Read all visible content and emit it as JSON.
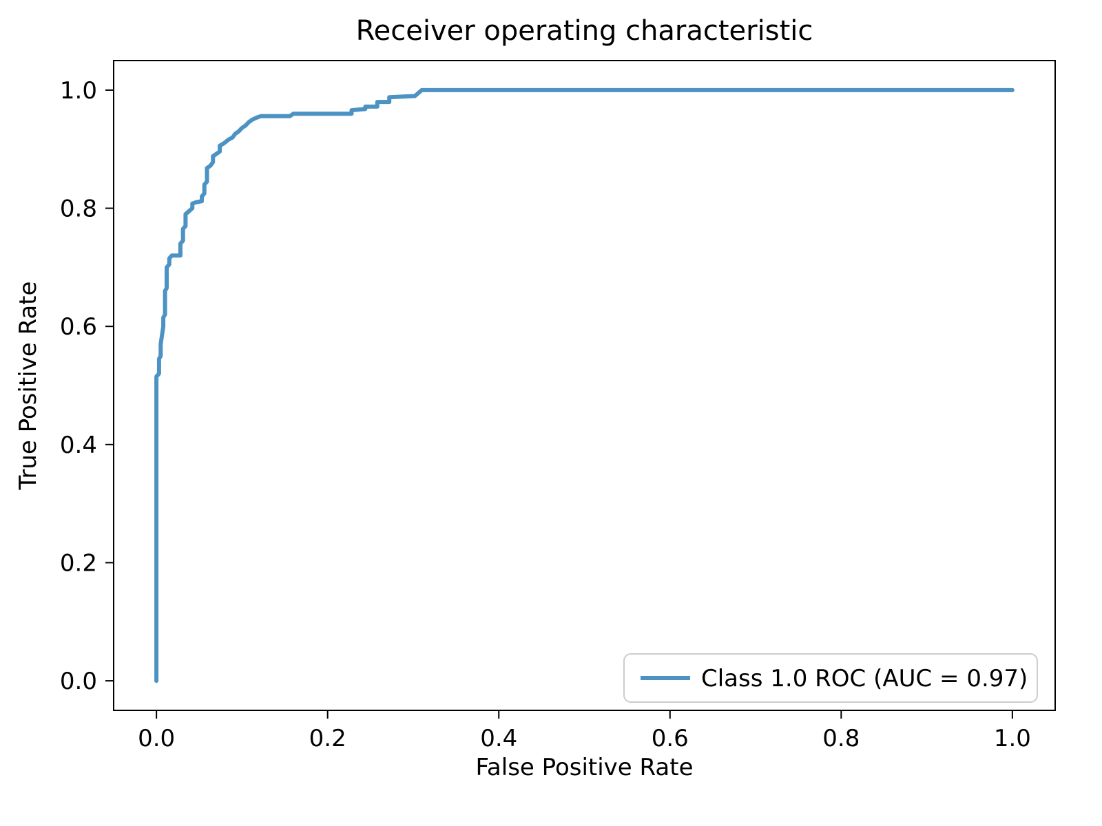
{
  "figure": {
    "background": "#ffffff",
    "text_color": "#000000",
    "spine_color": "#000000"
  },
  "chart_data": {
    "type": "line",
    "title": "Receiver operating characteristic",
    "xlabel": "False Positive Rate",
    "ylabel": "True Positive Rate",
    "xlim": [
      -0.05,
      1.05
    ],
    "ylim": [
      -0.05,
      1.05
    ],
    "xticks": [
      0.0,
      0.2,
      0.4,
      0.6,
      0.8,
      1.0
    ],
    "yticks": [
      0.0,
      0.2,
      0.4,
      0.6,
      0.8,
      1.0
    ],
    "grid": false,
    "legend": {
      "position": "lower right",
      "border_color": "#cccccc",
      "entries": [
        {
          "label": "Class 1.0 ROC (AUC = 0.97)",
          "color": "#4c92c3"
        }
      ]
    },
    "series": [
      {
        "name": "Class 1.0 ROC (AUC = 0.97)",
        "color": "#4c92c3",
        "linewidth": 6,
        "auc": 0.97,
        "points": [
          [
            0.0,
            0.0
          ],
          [
            0.0,
            0.515
          ],
          [
            0.003,
            0.52
          ],
          [
            0.003,
            0.545
          ],
          [
            0.005,
            0.55
          ],
          [
            0.005,
            0.57
          ],
          [
            0.008,
            0.6
          ],
          [
            0.008,
            0.615
          ],
          [
            0.01,
            0.62
          ],
          [
            0.01,
            0.66
          ],
          [
            0.012,
            0.665
          ],
          [
            0.012,
            0.7
          ],
          [
            0.015,
            0.705
          ],
          [
            0.015,
            0.715
          ],
          [
            0.018,
            0.72
          ],
          [
            0.028,
            0.72
          ],
          [
            0.028,
            0.74
          ],
          [
            0.031,
            0.745
          ],
          [
            0.031,
            0.765
          ],
          [
            0.034,
            0.77
          ],
          [
            0.034,
            0.79
          ],
          [
            0.038,
            0.795
          ],
          [
            0.042,
            0.8
          ],
          [
            0.042,
            0.808
          ],
          [
            0.046,
            0.81
          ],
          [
            0.053,
            0.812
          ],
          [
            0.053,
            0.82
          ],
          [
            0.056,
            0.825
          ],
          [
            0.056,
            0.84
          ],
          [
            0.059,
            0.845
          ],
          [
            0.059,
            0.868
          ],
          [
            0.063,
            0.872
          ],
          [
            0.066,
            0.878
          ],
          [
            0.066,
            0.888
          ],
          [
            0.07,
            0.892
          ],
          [
            0.074,
            0.896
          ],
          [
            0.074,
            0.906
          ],
          [
            0.079,
            0.91
          ],
          [
            0.084,
            0.916
          ],
          [
            0.089,
            0.92
          ],
          [
            0.092,
            0.926
          ],
          [
            0.096,
            0.93
          ],
          [
            0.1,
            0.936
          ],
          [
            0.104,
            0.94
          ],
          [
            0.108,
            0.946
          ],
          [
            0.112,
            0.95
          ],
          [
            0.118,
            0.954
          ],
          [
            0.122,
            0.956
          ],
          [
            0.156,
            0.956
          ],
          [
            0.16,
            0.96
          ],
          [
            0.228,
            0.96
          ],
          [
            0.228,
            0.966
          ],
          [
            0.244,
            0.968
          ],
          [
            0.244,
            0.972
          ],
          [
            0.258,
            0.972
          ],
          [
            0.258,
            0.98
          ],
          [
            0.272,
            0.98
          ],
          [
            0.272,
            0.988
          ],
          [
            0.302,
            0.99
          ],
          [
            0.31,
            1.0
          ],
          [
            1.0,
            1.0
          ]
        ]
      }
    ]
  }
}
